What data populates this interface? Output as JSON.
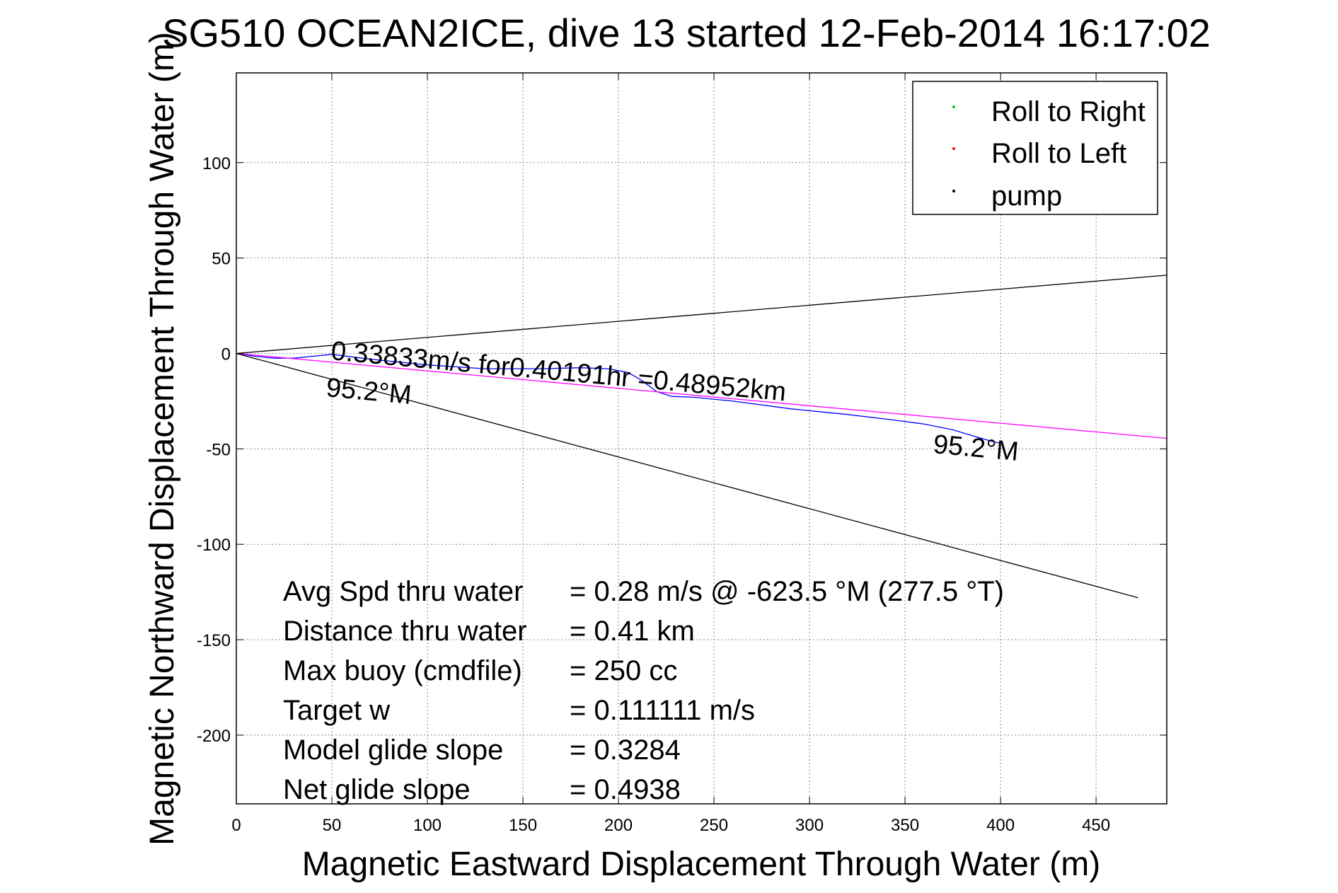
{
  "chart_data": {
    "type": "line",
    "title": "SG510 OCEAN2ICE, dive 13 started 12-Feb-2014 16:17:02",
    "xlabel": "Magnetic Eastward Displacement Through Water (m)",
    "ylabel": "Magnetic Northward Displacement Through Water (m)",
    "xlim": [
      0,
      487
    ],
    "ylim": [
      -236,
      147
    ],
    "xticks": [
      0,
      50,
      100,
      150,
      200,
      250,
      300,
      350,
      400,
      450
    ],
    "yticks": [
      -200,
      -150,
      -100,
      -50,
      0,
      50,
      100
    ],
    "grid": true,
    "legend_position": "top-right",
    "legend": [
      {
        "label": "Roll to Right",
        "color": "#00cc00"
      },
      {
        "label": "Roll to Left",
        "color": "#ff0000"
      },
      {
        "label": "pump",
        "color": "#000000"
      }
    ],
    "series": [
      {
        "color": "#0000ff",
        "x": [
          0,
          10,
          20,
          30,
          40,
          50,
          70,
          100,
          130,
          160,
          180,
          195,
          205,
          212,
          220,
          228,
          240,
          260,
          290,
          320,
          345,
          360,
          375,
          385,
          395,
          400
        ],
        "y": [
          0,
          -1.5,
          -2.5,
          -2.5,
          -1.5,
          -0.5,
          -3,
          -6,
          -8,
          -8,
          -7.5,
          -8,
          -10,
          -14,
          -20,
          -22.5,
          -23,
          -25,
          -29,
          -32,
          -35,
          -37,
          -40,
          -43,
          -46,
          -47
        ]
      },
      {
        "color": "#ff00ff",
        "x": [
          0,
          487
        ],
        "y": [
          0,
          -44.5
        ]
      },
      {
        "color": "#000000",
        "x": [
          0,
          487
        ],
        "y": [
          0,
          41
        ]
      },
      {
        "color": "#000000",
        "x": [
          0,
          472
        ],
        "y": [
          0,
          -128
        ]
      }
    ],
    "annotations": {
      "speed_label": "0.33833m/s for0.40191hr =0.48952km",
      "heading_label_start": "95.2°M",
      "heading_label_end": "95.2°M"
    },
    "stats": [
      {
        "label": "Avg Spd thru water",
        "value": "=  0.28 m/s @ -623.5 °M (277.5 °T)"
      },
      {
        "label": "Distance thru water",
        "value": "=  0.41 km"
      },
      {
        "label": "Max buoy (cmdfile)",
        "value": "= 250 cc"
      },
      {
        "label": "Target w",
        "value": "= 0.111111 m/s"
      },
      {
        "label": "Model glide slope",
        "value": "= 0.3284"
      },
      {
        "label": "Net glide slope",
        "value": "= 0.4938"
      }
    ]
  }
}
